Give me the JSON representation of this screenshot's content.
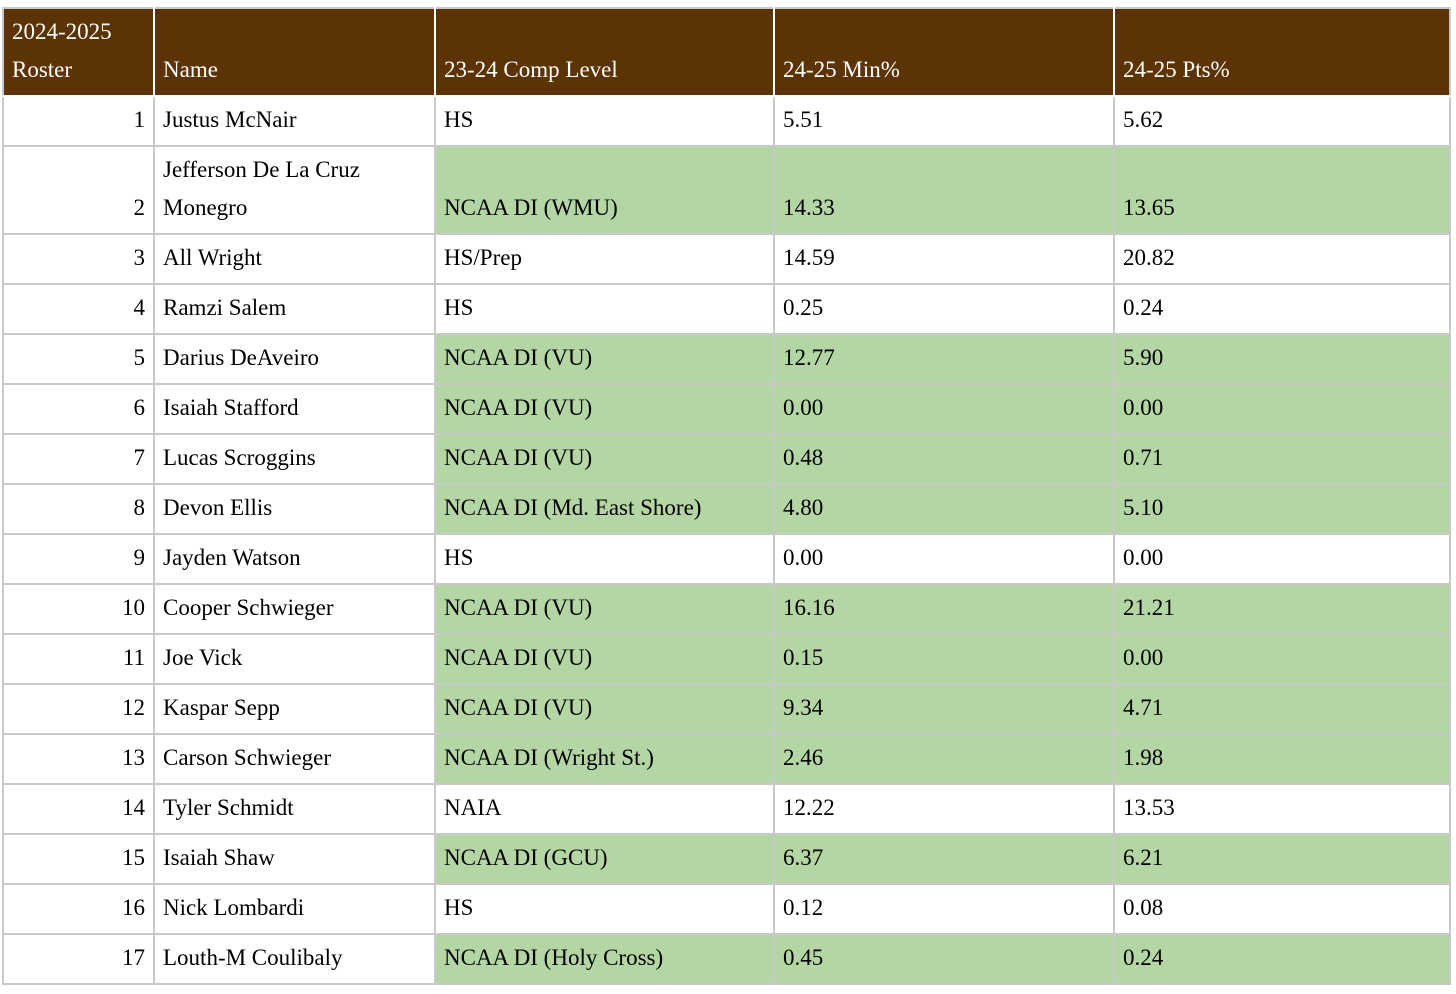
{
  "chart_data": {
    "type": "table",
    "title": "2024-2025 Roster",
    "columns": [
      {
        "key": "roster",
        "label": "2024-2025 Roster"
      },
      {
        "key": "name",
        "label": "Name"
      },
      {
        "key": "comp_level",
        "label": "23-24 Comp Level"
      },
      {
        "key": "min_pct",
        "label": "24-25 Min%"
      },
      {
        "key": "pts_pct",
        "label": "24-25 Pts%"
      }
    ],
    "highlight_columns": [
      "comp_level",
      "min_pct",
      "pts_pct"
    ],
    "highlight_meaning": "green shading on NCAA DI competition-level rows",
    "rows": [
      {
        "roster": "1",
        "name": "Justus McNair",
        "comp_level": "HS",
        "min_pct": "5.51",
        "pts_pct": "5.62",
        "highlight": false
      },
      {
        "roster": "2",
        "name": "Jefferson De La Cruz Monegro",
        "comp_level": "NCAA DI (WMU)",
        "min_pct": "14.33",
        "pts_pct": "13.65",
        "highlight": true
      },
      {
        "roster": "3",
        "name": "All Wright",
        "comp_level": "HS/Prep",
        "min_pct": "14.59",
        "pts_pct": "20.82",
        "highlight": false
      },
      {
        "roster": "4",
        "name": "Ramzi Salem",
        "comp_level": "HS",
        "min_pct": "0.25",
        "pts_pct": "0.24",
        "highlight": false
      },
      {
        "roster": "5",
        "name": "Darius DeAveiro",
        "comp_level": "NCAA DI (VU)",
        "min_pct": "12.77",
        "pts_pct": "5.90",
        "highlight": true
      },
      {
        "roster": "6",
        "name": "Isaiah Stafford",
        "comp_level": "NCAA DI (VU)",
        "min_pct": "0.00",
        "pts_pct": "0.00",
        "highlight": true
      },
      {
        "roster": "7",
        "name": "Lucas Scroggins",
        "comp_level": "NCAA DI (VU)",
        "min_pct": "0.48",
        "pts_pct": "0.71",
        "highlight": true
      },
      {
        "roster": "8",
        "name": "Devon Ellis",
        "comp_level": "NCAA DI (Md. East Shore)",
        "min_pct": "4.80",
        "pts_pct": "5.10",
        "highlight": true
      },
      {
        "roster": "9",
        "name": "Jayden Watson",
        "comp_level": "HS",
        "min_pct": "0.00",
        "pts_pct": "0.00",
        "highlight": false
      },
      {
        "roster": "10",
        "name": "Cooper Schwieger",
        "comp_level": "NCAA DI (VU)",
        "min_pct": "16.16",
        "pts_pct": "21.21",
        "highlight": true
      },
      {
        "roster": "11",
        "name": "Joe Vick",
        "comp_level": "NCAA DI (VU)",
        "min_pct": "0.15",
        "pts_pct": "0.00",
        "highlight": true
      },
      {
        "roster": "12",
        "name": "Kaspar Sepp",
        "comp_level": "NCAA DI (VU)",
        "min_pct": "9.34",
        "pts_pct": "4.71",
        "highlight": true
      },
      {
        "roster": "13",
        "name": "Carson Schwieger",
        "comp_level": "NCAA DI (Wright St.)",
        "min_pct": "2.46",
        "pts_pct": "1.98",
        "highlight": true
      },
      {
        "roster": "14",
        "name": "Tyler Schmidt",
        "comp_level": "NAIA",
        "min_pct": "12.22",
        "pts_pct": "13.53",
        "highlight": false
      },
      {
        "roster": "15",
        "name": "Isaiah Shaw",
        "comp_level": "NCAA DI (GCU)",
        "min_pct": "6.37",
        "pts_pct": "6.21",
        "highlight": true
      },
      {
        "roster": "16",
        "name": "Nick Lombardi",
        "comp_level": "HS",
        "min_pct": "0.12",
        "pts_pct": "0.08",
        "highlight": false
      },
      {
        "roster": "17",
        "name": "Louth-M Coulibaly",
        "comp_level": "NCAA DI (Holy Cross)",
        "min_pct": "0.45",
        "pts_pct": "0.24",
        "highlight": true
      }
    ],
    "colors": {
      "header_bg": "#5b3305",
      "header_text": "#ffffff",
      "highlight_bg": "#b4d5a4",
      "row_bg": "#ffffff",
      "border": "#c9c9c9",
      "text": "#000000"
    }
  }
}
